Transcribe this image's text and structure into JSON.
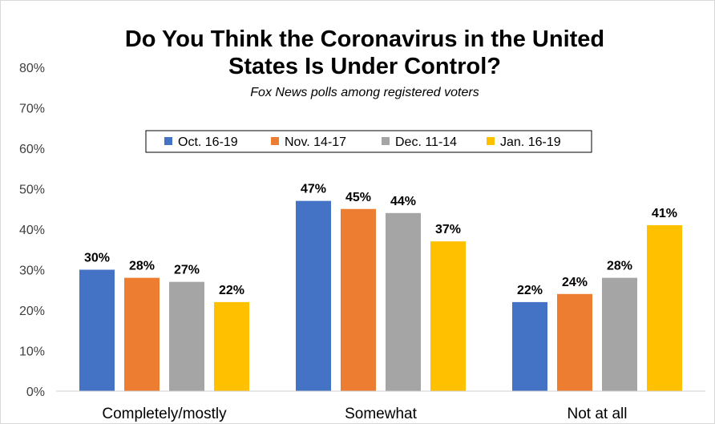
{
  "chart_data": {
    "type": "bar",
    "title_line1": "Do You Think the Coronavirus in the United",
    "title_line2": "States Is Under Control?",
    "subtitle": "Fox News polls among registered voters",
    "categories": [
      "Completely/mostly",
      "Somewhat",
      "Not at all"
    ],
    "series": [
      {
        "name": "Oct. 16-19",
        "color": "#4472C4",
        "values": [
          30,
          47,
          22
        ]
      },
      {
        "name": "Nov. 14-17",
        "color": "#ED7D31",
        "values": [
          28,
          45,
          24
        ]
      },
      {
        "name": "Dec. 11-14",
        "color": "#A5A5A5",
        "values": [
          27,
          44,
          28
        ]
      },
      {
        "name": "Jan. 16-19",
        "color": "#FFC000",
        "values": [
          22,
          37,
          41
        ]
      }
    ],
    "ylim": [
      0,
      80
    ],
    "yticks": [
      "0%",
      "10%",
      "20%",
      "30%",
      "40%",
      "50%",
      "60%",
      "70%",
      "80%"
    ],
    "value_suffix": "%",
    "legend_position": "top-center",
    "grid": false
  }
}
